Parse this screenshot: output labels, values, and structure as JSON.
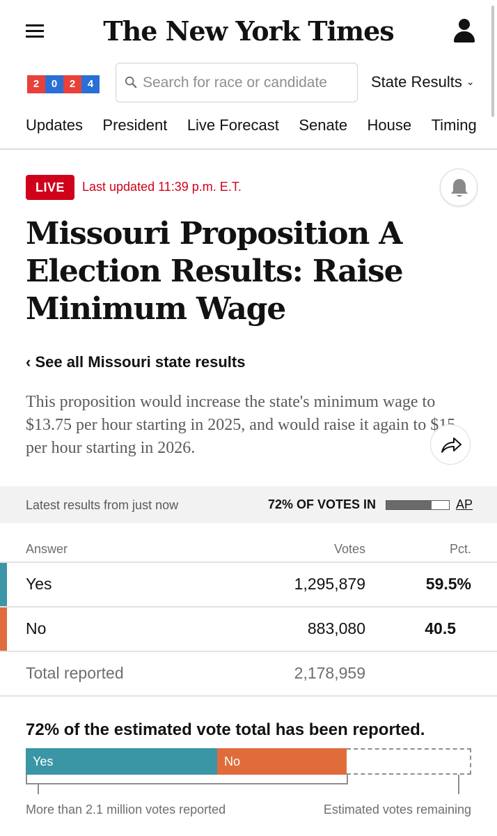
{
  "header": {
    "logo_text": "The New York Times",
    "menu_icon": "hamburger-menu-icon",
    "account_icon": "user-icon"
  },
  "search_row": {
    "badge_digits": [
      "2",
      "0",
      "2",
      "4"
    ],
    "badge_colors": [
      "#e8413a",
      "#2a6fd6",
      "#e8413a",
      "#2a6fd6"
    ],
    "search_placeholder": "Search for race or candidate",
    "state_results_label": "State Results"
  },
  "nav": {
    "items": [
      "Updates",
      "President",
      "Live Forecast",
      "Senate",
      "House",
      "Timing"
    ]
  },
  "live": {
    "badge": "LIVE",
    "last_updated": "Last updated 11:39 p.m. E.T.",
    "color": "#d0021b"
  },
  "article": {
    "headline": "Missouri Proposition A Election Results: Raise Minimum Wage",
    "see_all": "‹ See all Missouri state results",
    "summary": "This proposition would increase the state's minimum wage to $13.75 per hour starting in 2025, and would raise it again to $15 per hour starting in 2026."
  },
  "status": {
    "latest": "Latest results from just now",
    "votes_in": "72% OF VOTES IN",
    "votes_in_fraction": 0.72,
    "source": "AP"
  },
  "table": {
    "headers": {
      "answer": "Answer",
      "votes": "Votes",
      "pct": "Pct."
    },
    "rows": [
      {
        "answer": "Yes",
        "votes": "1,295,879",
        "pct": "59.5%",
        "color": "#3a96a4"
      },
      {
        "answer": "No",
        "votes": "883,080",
        "pct": "40.5",
        "color": "#e06c3c"
      }
    ],
    "total": {
      "label": "Total reported",
      "votes": "2,178,959"
    }
  },
  "estimate": {
    "title": "72% of the estimated vote total has been reported.",
    "yes_label": "Yes",
    "no_label": "No",
    "yes_share_of_estimate": 0.43,
    "no_share_of_estimate": 0.29,
    "reported_caption": "More than 2.1 million votes reported",
    "remaining_caption": "Estimated votes remaining"
  }
}
